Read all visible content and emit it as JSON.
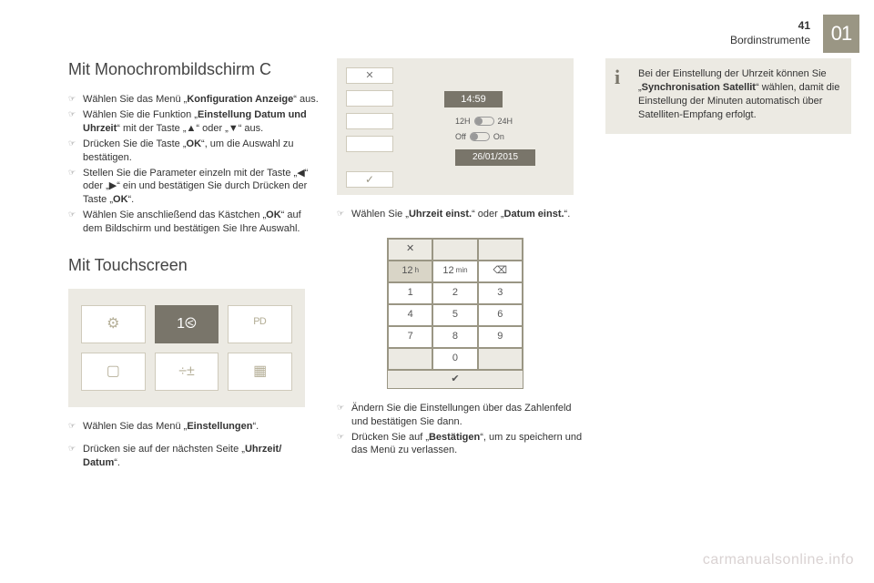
{
  "page": {
    "number": "41",
    "section": "Bordinstrumente",
    "chapter": "01"
  },
  "left": {
    "h1": "Mit Monochrombildschirm C",
    "items1": [
      "Wählen Sie das Menü „<b>Konfiguration Anzeige</b>“ aus.",
      "Wählen Sie die Funktion „<b>Einstellung Datum und Uhrzeit</b>“ mit der Taste „▲“ oder „▼“ aus.",
      "Drücken Sie die Taste „<b>OK</b>“, um die Auswahl zu bestätigen.",
      "Stellen Sie die Parameter einzeln mit der Taste „◀“ oder „▶“ ein und bestätigen Sie durch Drücken der Taste „<b>OK</b>“.",
      "Wählen Sie anschließend das Kästchen „<b>OK</b>“ auf dem Bildschirm und bestätigen Sie Ihre Auswahl."
    ],
    "h2": "Mit Touchscreen",
    "items2": [
      "Wählen Sie das Menü „<b>Einstellungen</b>“."
    ],
    "items3": [
      "Drücken sie auf der nächsten Seite „<b>Uhrzeit/ Datum</b>“."
    ],
    "tiles": {
      "gear": "⚙",
      "clock": "1⧀",
      "lang": "ᴾᴰ",
      "screen": "▢",
      "calc": "÷±",
      "cal": "▦"
    }
  },
  "mid": {
    "screen": {
      "close": "✕",
      "time": "14:59",
      "l12": "12H",
      "l24": "24H",
      "off": "Off",
      "on": "On",
      "date": "26/01/2015",
      "check": "✓"
    },
    "items1": [
      "Wählen Sie „<b>Uhrzeit einst.</b>“ oder „<b>Datum einst.</b>“."
    ],
    "keypad": {
      "close": "✕",
      "hh": "12",
      "h": "h",
      "mm": "12",
      "min": "min",
      "bksp": "⌫",
      "n1": "1",
      "n2": "2",
      "n3": "3",
      "n4": "4",
      "n5": "5",
      "n6": "6",
      "n7": "7",
      "n8": "8",
      "n9": "9",
      "n0": "0",
      "ok": "✔"
    },
    "items2": [
      "Ändern Sie die Einstellungen über das Zahlenfeld und bestätigen Sie dann.",
      "Drücken Sie auf „<b>Bestätigen</b>“, um zu speichern und das Menü zu verlassen."
    ]
  },
  "right": {
    "info": "Bei der Einstellung der Uhrzeit können Sie „<b>Synchronisation Satellit</b>“ wählen, damit die Einstellung der Minuten automatisch über Satelliten-Empfang erfolgt."
  },
  "watermark": "carmanualsonline.info"
}
